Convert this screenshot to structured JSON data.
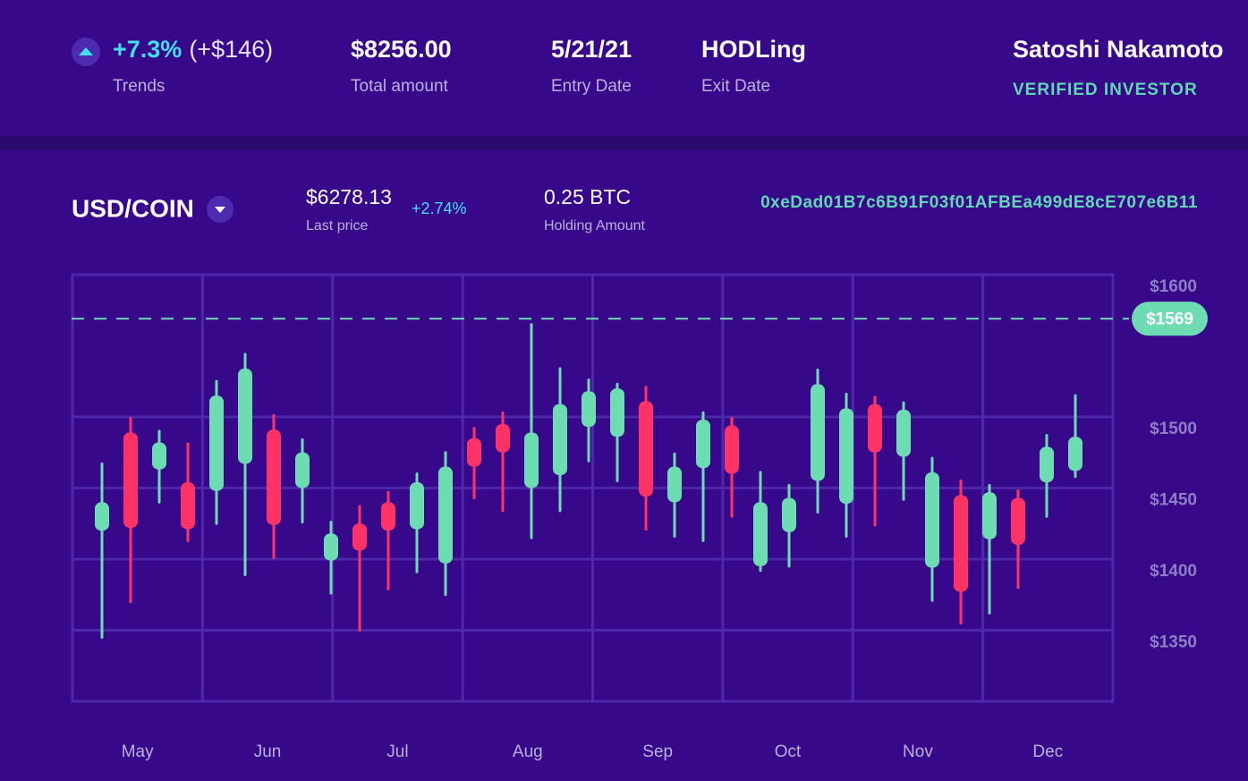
{
  "header": {
    "trend": {
      "change": "+7.3%",
      "amount": "(+$146)",
      "label": "Trends"
    },
    "stats": [
      {
        "value": "$8256.00",
        "label": "Total amount"
      },
      {
        "value": "5/21/21",
        "label": "Entry Date"
      },
      {
        "value": "HODLing",
        "label": "Exit Date"
      }
    ],
    "user": {
      "name": "Satoshi Nakamoto",
      "badge": "VERIFIED INVESTOR"
    }
  },
  "market": {
    "pair": "USD/COIN",
    "last_price": "$6278.13",
    "last_price_label": "Last price",
    "change": "+2.74%",
    "holding": "0.25 BTC",
    "holding_label": "Holding Amount",
    "address": "0xeDad01B7c6B91F03f01AFBEa499dE8cE707e6B11"
  },
  "chart_data": {
    "type": "candlestick",
    "up_color": "#6ddcb3",
    "down_color": "#ff3366",
    "ylim": [
      1300,
      1600
    ],
    "yticks": [
      {
        "value": 1600,
        "label": "$1600"
      },
      {
        "value": 1500,
        "label": "$1500"
      },
      {
        "value": 1450,
        "label": "$1450"
      },
      {
        "value": 1400,
        "label": "$1400"
      },
      {
        "value": 1350,
        "label": "$1350"
      }
    ],
    "grid": true,
    "months": [
      "May",
      "Jun",
      "Jul",
      "Aug",
      "Sep",
      "Oct",
      "Nov",
      "Dec"
    ],
    "reference_line": {
      "value": 1569,
      "label": "$1569"
    },
    "candles": [
      {
        "open": 1420,
        "high": 1467,
        "low": 1345,
        "close": 1440
      },
      {
        "open": 1489,
        "high": 1499,
        "low": 1370,
        "close": 1422
      },
      {
        "open": 1463,
        "high": 1490,
        "low": 1440,
        "close": 1482
      },
      {
        "open": 1454,
        "high": 1481,
        "low": 1413,
        "close": 1421
      },
      {
        "open": 1448,
        "high": 1525,
        "low": 1425,
        "close": 1515
      },
      {
        "open": 1467,
        "high": 1544,
        "low": 1389,
        "close": 1534
      },
      {
        "open": 1491,
        "high": 1501,
        "low": 1401,
        "close": 1424
      },
      {
        "open": 1450,
        "high": 1484,
        "low": 1426,
        "close": 1475
      },
      {
        "open": 1399,
        "high": 1426,
        "low": 1376,
        "close": 1418
      },
      {
        "open": 1425,
        "high": 1437,
        "low": 1350,
        "close": 1406
      },
      {
        "open": 1440,
        "high": 1447,
        "low": 1379,
        "close": 1420
      },
      {
        "open": 1421,
        "high": 1460,
        "low": 1391,
        "close": 1454
      },
      {
        "open": 1397,
        "high": 1475,
        "low": 1375,
        "close": 1465
      },
      {
        "open": 1485,
        "high": 1492,
        "low": 1443,
        "close": 1465
      },
      {
        "open": 1495,
        "high": 1503,
        "low": 1434,
        "close": 1475
      },
      {
        "open": 1450,
        "high": 1565,
        "low": 1415,
        "close": 1489
      },
      {
        "open": 1459,
        "high": 1534,
        "low": 1434,
        "close": 1509
      },
      {
        "open": 1493,
        "high": 1526,
        "low": 1469,
        "close": 1518
      },
      {
        "open": 1486,
        "high": 1523,
        "low": 1455,
        "close": 1520
      },
      {
        "open": 1511,
        "high": 1521,
        "low": 1421,
        "close": 1444
      },
      {
        "open": 1440,
        "high": 1474,
        "low": 1416,
        "close": 1465
      },
      {
        "open": 1464,
        "high": 1503,
        "low": 1413,
        "close": 1498
      },
      {
        "open": 1494,
        "high": 1499,
        "low": 1430,
        "close": 1460
      },
      {
        "open": 1395,
        "high": 1461,
        "low": 1392,
        "close": 1440
      },
      {
        "open": 1419,
        "high": 1452,
        "low": 1395,
        "close": 1443
      },
      {
        "open": 1455,
        "high": 1533,
        "low": 1433,
        "close": 1523
      },
      {
        "open": 1439,
        "high": 1516,
        "low": 1416,
        "close": 1506
      },
      {
        "open": 1509,
        "high": 1514,
        "low": 1424,
        "close": 1475
      },
      {
        "open": 1472,
        "high": 1510,
        "low": 1442,
        "close": 1505
      },
      {
        "open": 1394,
        "high": 1471,
        "low": 1371,
        "close": 1461
      },
      {
        "open": 1445,
        "high": 1455,
        "low": 1355,
        "close": 1377
      },
      {
        "open": 1414,
        "high": 1452,
        "low": 1362,
        "close": 1447
      },
      {
        "open": 1443,
        "high": 1448,
        "low": 1380,
        "close": 1410
      },
      {
        "open": 1454,
        "high": 1487,
        "low": 1430,
        "close": 1479
      },
      {
        "open": 1462,
        "high": 1515,
        "low": 1458,
        "close": 1486
      }
    ]
  }
}
